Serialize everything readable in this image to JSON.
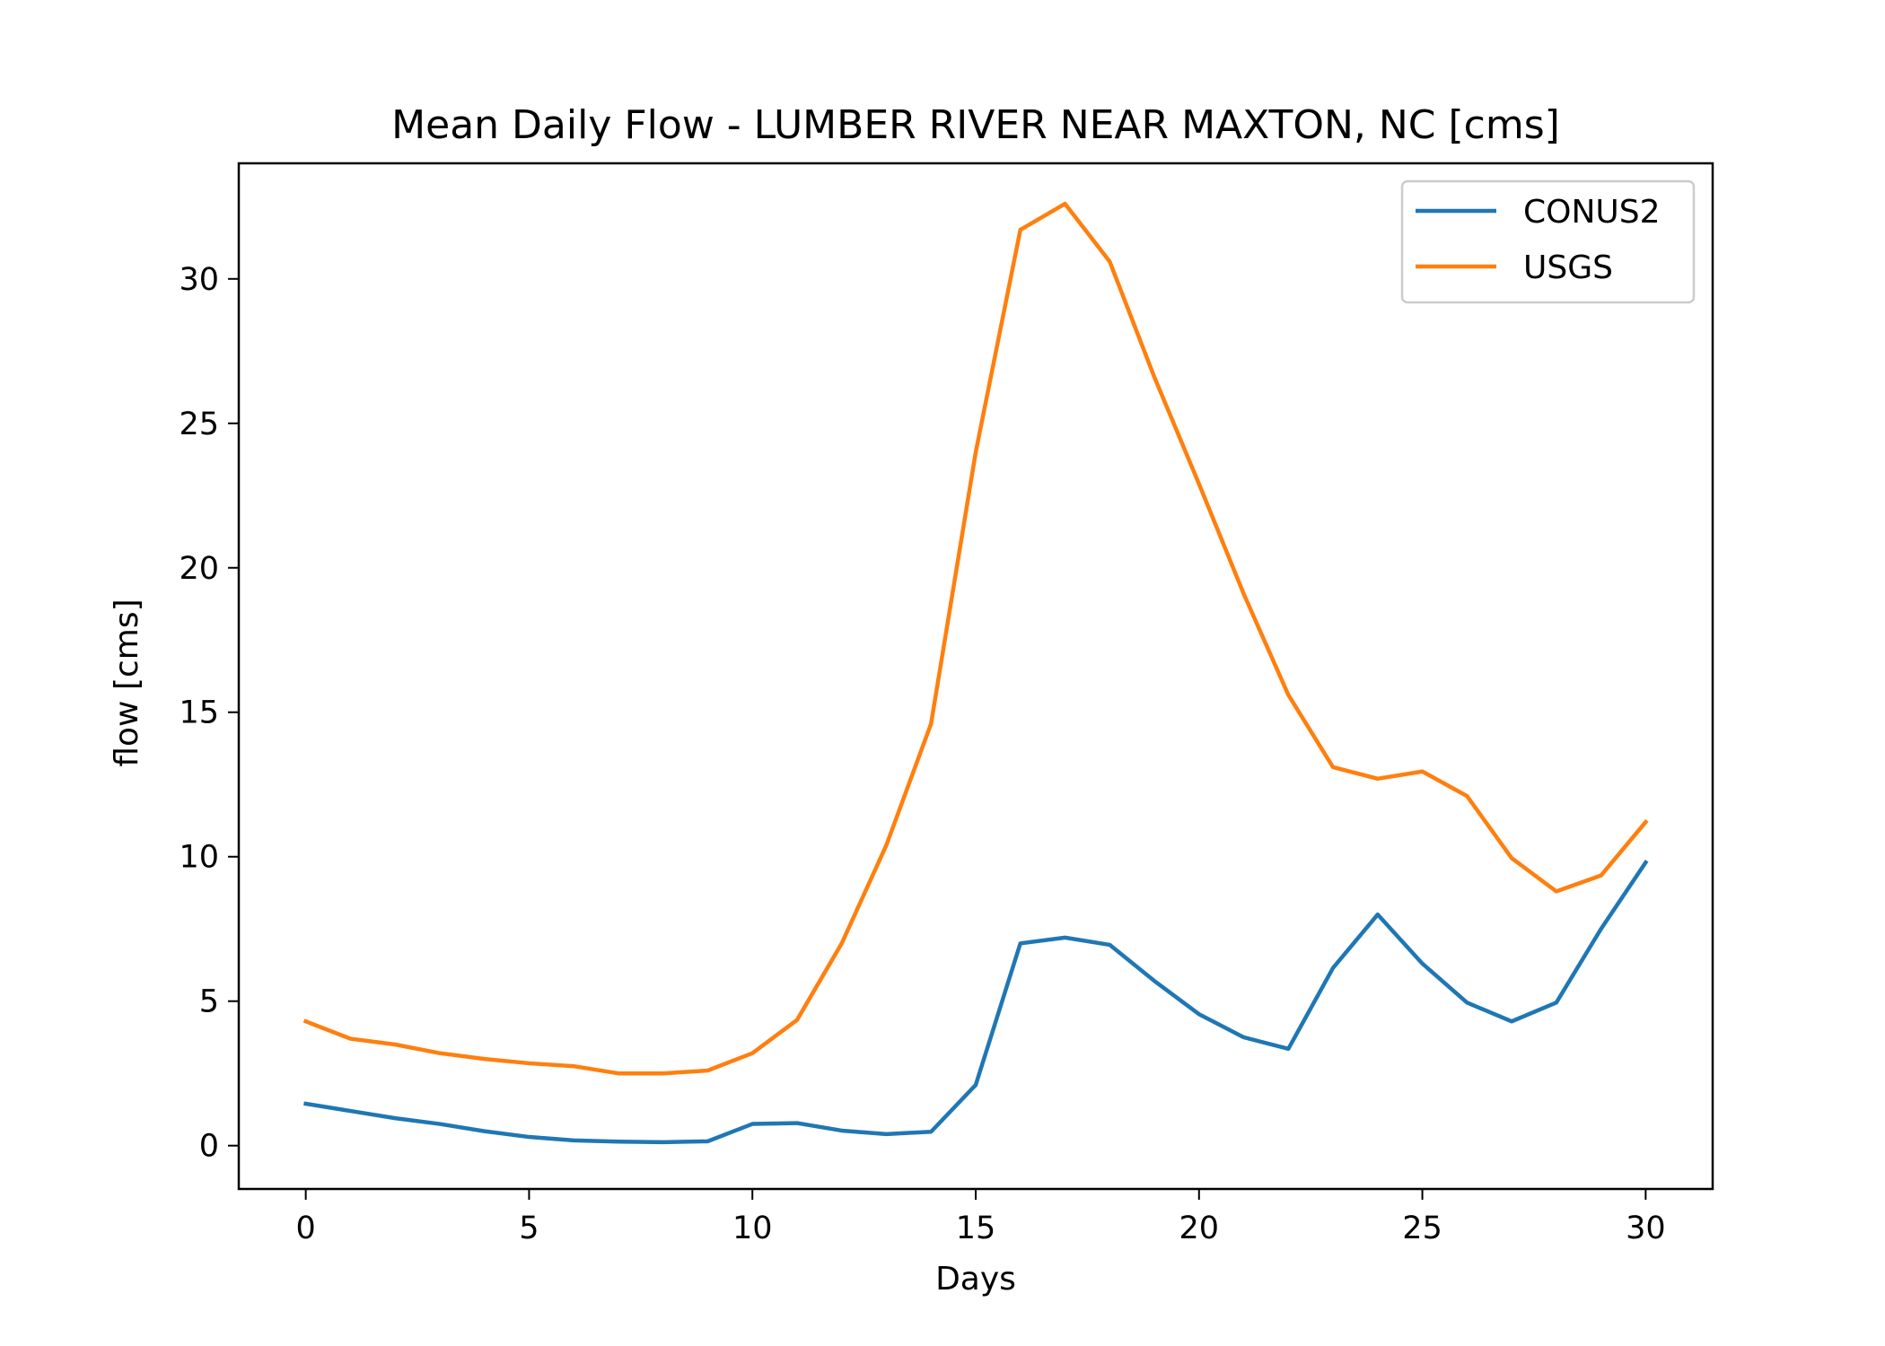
{
  "chart_data": {
    "type": "line",
    "title": "Mean Daily Flow - LUMBER RIVER NEAR MAXTON, NC [cms]",
    "xlabel": "Days",
    "ylabel": "flow [cms]",
    "xlim": [
      -1.5,
      31.5
    ],
    "ylim": [
      -1.5,
      34.0
    ],
    "xticks": [
      0,
      5,
      10,
      15,
      20,
      25,
      30
    ],
    "yticks": [
      0,
      5,
      10,
      15,
      20,
      25,
      30
    ],
    "grid": false,
    "legend_position": "top-right",
    "x": [
      0,
      1,
      2,
      3,
      4,
      5,
      6,
      7,
      8,
      9,
      10,
      11,
      12,
      13,
      14,
      15,
      16,
      17,
      18,
      19,
      20,
      21,
      22,
      23,
      24,
      25,
      26,
      27,
      28,
      29,
      30
    ],
    "series": [
      {
        "name": "CONUS2",
        "color": "#1f77b4",
        "values": [
          1.45,
          1.2,
          0.95,
          0.75,
          0.5,
          0.3,
          0.18,
          0.14,
          0.12,
          0.15,
          0.75,
          0.78,
          0.52,
          0.4,
          0.48,
          2.1,
          7.0,
          7.2,
          6.95,
          5.7,
          4.55,
          3.75,
          3.35,
          6.15,
          8.0,
          6.3,
          4.95,
          4.3,
          4.95,
          7.5,
          9.8
        ]
      },
      {
        "name": "USGS",
        "color": "#ff7f0e",
        "values": [
          4.3,
          3.7,
          3.5,
          3.2,
          3.0,
          2.85,
          2.75,
          2.5,
          2.5,
          2.6,
          3.2,
          4.35,
          7.0,
          10.4,
          14.6,
          24.0,
          31.7,
          32.6,
          30.6,
          26.6,
          22.9,
          19.1,
          15.6,
          13.1,
          12.7,
          12.95,
          12.1,
          9.95,
          8.8,
          9.35,
          11.2
        ]
      }
    ]
  }
}
